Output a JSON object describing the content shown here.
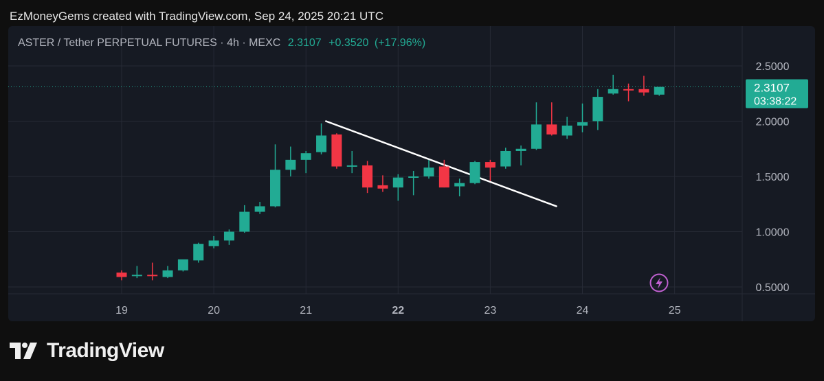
{
  "caption": "EzMoneyGems created with TradingView.com, Sep 24, 2025 20:21 UTC",
  "legend": {
    "symbol": "ASTER / Tether PERPETUAL FUTURES · 4h · MEXC",
    "last": "2.3107",
    "change": "+0.3520",
    "change_pct": "(+17.96%)"
  },
  "price_label": {
    "price": "2.3107",
    "countdown": "03:38:22"
  },
  "brand": {
    "name": "TradingView"
  },
  "colors": {
    "up": "#22ab94",
    "down": "#f23645",
    "grid": "#262a35",
    "text": "#b2b5be",
    "trendline": "#ffffff",
    "badge": "#22ab94",
    "lightning": "#c060d0"
  },
  "icons": {
    "lightning": "lightning-icon",
    "logo": "tradingview-logo-icon"
  },
  "chart_data": {
    "type": "candlestick",
    "interval": "4h",
    "y_ticks": [
      "2.5000",
      "2.0000",
      "1.5000",
      "1.0000",
      "0.5000"
    ],
    "x_ticks": [
      {
        "label": "19",
        "x": 0,
        "bold": false
      },
      {
        "label": "20",
        "x": 6,
        "bold": false
      },
      {
        "label": "21",
        "x": 12,
        "bold": false
      },
      {
        "label": "22",
        "x": 18,
        "bold": true
      },
      {
        "label": "23",
        "x": 24,
        "bold": false
      },
      {
        "label": "24",
        "x": 30,
        "bold": false
      },
      {
        "label": "25",
        "x": 36,
        "bold": false
      }
    ],
    "ylim": [
      0.42,
      2.6
    ],
    "xlim": [
      -6,
      42
    ],
    "last_price": 2.3107,
    "candles": [
      {
        "x": 0,
        "o": 0.63,
        "h": 0.65,
        "l": 0.56,
        "c": 0.59
      },
      {
        "x": 1,
        "o": 0.6,
        "h": 0.69,
        "l": 0.58,
        "c": 0.61
      },
      {
        "x": 2,
        "o": 0.61,
        "h": 0.72,
        "l": 0.56,
        "c": 0.6
      },
      {
        "x": 3,
        "o": 0.59,
        "h": 0.69,
        "l": 0.58,
        "c": 0.65
      },
      {
        "x": 4,
        "o": 0.65,
        "h": 0.73,
        "l": 0.64,
        "c": 0.75
      },
      {
        "x": 5,
        "o": 0.74,
        "h": 0.9,
        "l": 0.72,
        "c": 0.89
      },
      {
        "x": 6,
        "o": 0.87,
        "h": 0.96,
        "l": 0.85,
        "c": 0.92
      },
      {
        "x": 7,
        "o": 0.92,
        "h": 1.02,
        "l": 0.88,
        "c": 1.0
      },
      {
        "x": 8,
        "o": 1.0,
        "h": 1.24,
        "l": 0.99,
        "c": 1.18
      },
      {
        "x": 9,
        "o": 1.18,
        "h": 1.27,
        "l": 1.16,
        "c": 1.23
      },
      {
        "x": 10,
        "o": 1.23,
        "h": 1.79,
        "l": 1.22,
        "c": 1.56
      },
      {
        "x": 11,
        "o": 1.56,
        "h": 1.77,
        "l": 1.5,
        "c": 1.65
      },
      {
        "x": 12,
        "o": 1.65,
        "h": 1.73,
        "l": 1.53,
        "c": 1.71
      },
      {
        "x": 13,
        "o": 1.72,
        "h": 1.98,
        "l": 1.7,
        "c": 1.87
      },
      {
        "x": 14,
        "o": 1.88,
        "h": 1.89,
        "l": 1.57,
        "c": 1.59
      },
      {
        "x": 15,
        "o": 1.6,
        "h": 1.73,
        "l": 1.53,
        "c": 1.6
      },
      {
        "x": 16,
        "o": 1.6,
        "h": 1.64,
        "l": 1.35,
        "c": 1.4
      },
      {
        "x": 17,
        "o": 1.42,
        "h": 1.51,
        "l": 1.36,
        "c": 1.39
      },
      {
        "x": 18,
        "o": 1.4,
        "h": 1.52,
        "l": 1.28,
        "c": 1.49
      },
      {
        "x": 19,
        "o": 1.49,
        "h": 1.55,
        "l": 1.33,
        "c": 1.5
      },
      {
        "x": 20,
        "o": 1.5,
        "h": 1.65,
        "l": 1.48,
        "c": 1.58
      },
      {
        "x": 21,
        "o": 1.59,
        "h": 1.65,
        "l": 1.4,
        "c": 1.4
      },
      {
        "x": 22,
        "o": 1.41,
        "h": 1.48,
        "l": 1.32,
        "c": 1.44
      },
      {
        "x": 23,
        "o": 1.44,
        "h": 1.64,
        "l": 1.43,
        "c": 1.63
      },
      {
        "x": 24,
        "o": 1.63,
        "h": 1.65,
        "l": 1.46,
        "c": 1.58
      },
      {
        "x": 25,
        "o": 1.59,
        "h": 1.76,
        "l": 1.57,
        "c": 1.73
      },
      {
        "x": 26,
        "o": 1.73,
        "h": 1.78,
        "l": 1.6,
        "c": 1.75
      },
      {
        "x": 27,
        "o": 1.75,
        "h": 2.17,
        "l": 1.74,
        "c": 1.97
      },
      {
        "x": 28,
        "o": 1.97,
        "h": 2.17,
        "l": 1.87,
        "c": 1.88
      },
      {
        "x": 29,
        "o": 1.87,
        "h": 2.04,
        "l": 1.84,
        "c": 1.96
      },
      {
        "x": 30,
        "o": 1.96,
        "h": 2.16,
        "l": 1.9,
        "c": 1.99
      },
      {
        "x": 31,
        "o": 2.0,
        "h": 2.29,
        "l": 1.92,
        "c": 2.22
      },
      {
        "x": 32,
        "o": 2.25,
        "h": 2.42,
        "l": 2.24,
        "c": 2.29
      },
      {
        "x": 33,
        "o": 2.29,
        "h": 2.34,
        "l": 2.18,
        "c": 2.28
      },
      {
        "x": 34,
        "o": 2.29,
        "h": 2.41,
        "l": 2.23,
        "c": 2.26
      },
      {
        "x": 35,
        "o": 2.24,
        "h": 2.31,
        "l": 2.23,
        "c": 2.31
      }
    ],
    "trendline": [
      {
        "x": 13.3,
        "y": 2.0
      },
      {
        "x": 28.3,
        "y": 1.23
      }
    ]
  }
}
